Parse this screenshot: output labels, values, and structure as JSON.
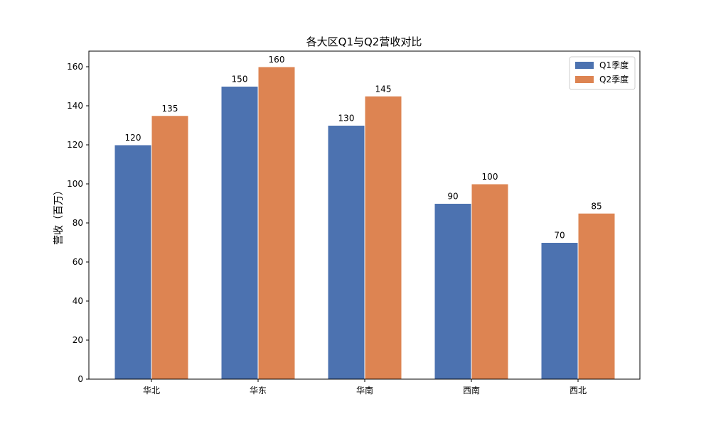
{
  "chart_data": {
    "type": "bar",
    "title": "各大区Q1与Q2营收对比",
    "xlabel": "",
    "ylabel": "营收（百万）",
    "categories": [
      "华北",
      "华东",
      "华南",
      "西南",
      "西北"
    ],
    "series": [
      {
        "name": "Q1季度",
        "values": [
          120,
          150,
          130,
          90,
          70
        ],
        "color": "#4c72b0"
      },
      {
        "name": "Q2季度",
        "values": [
          135,
          160,
          145,
          100,
          85
        ],
        "color": "#dd8452"
      }
    ],
    "ylim": [
      0,
      168
    ],
    "yticks": [
      0,
      20,
      40,
      60,
      80,
      100,
      120,
      140,
      160
    ],
    "grid": false,
    "legend_position": "top-right",
    "show_data_labels": true
  }
}
